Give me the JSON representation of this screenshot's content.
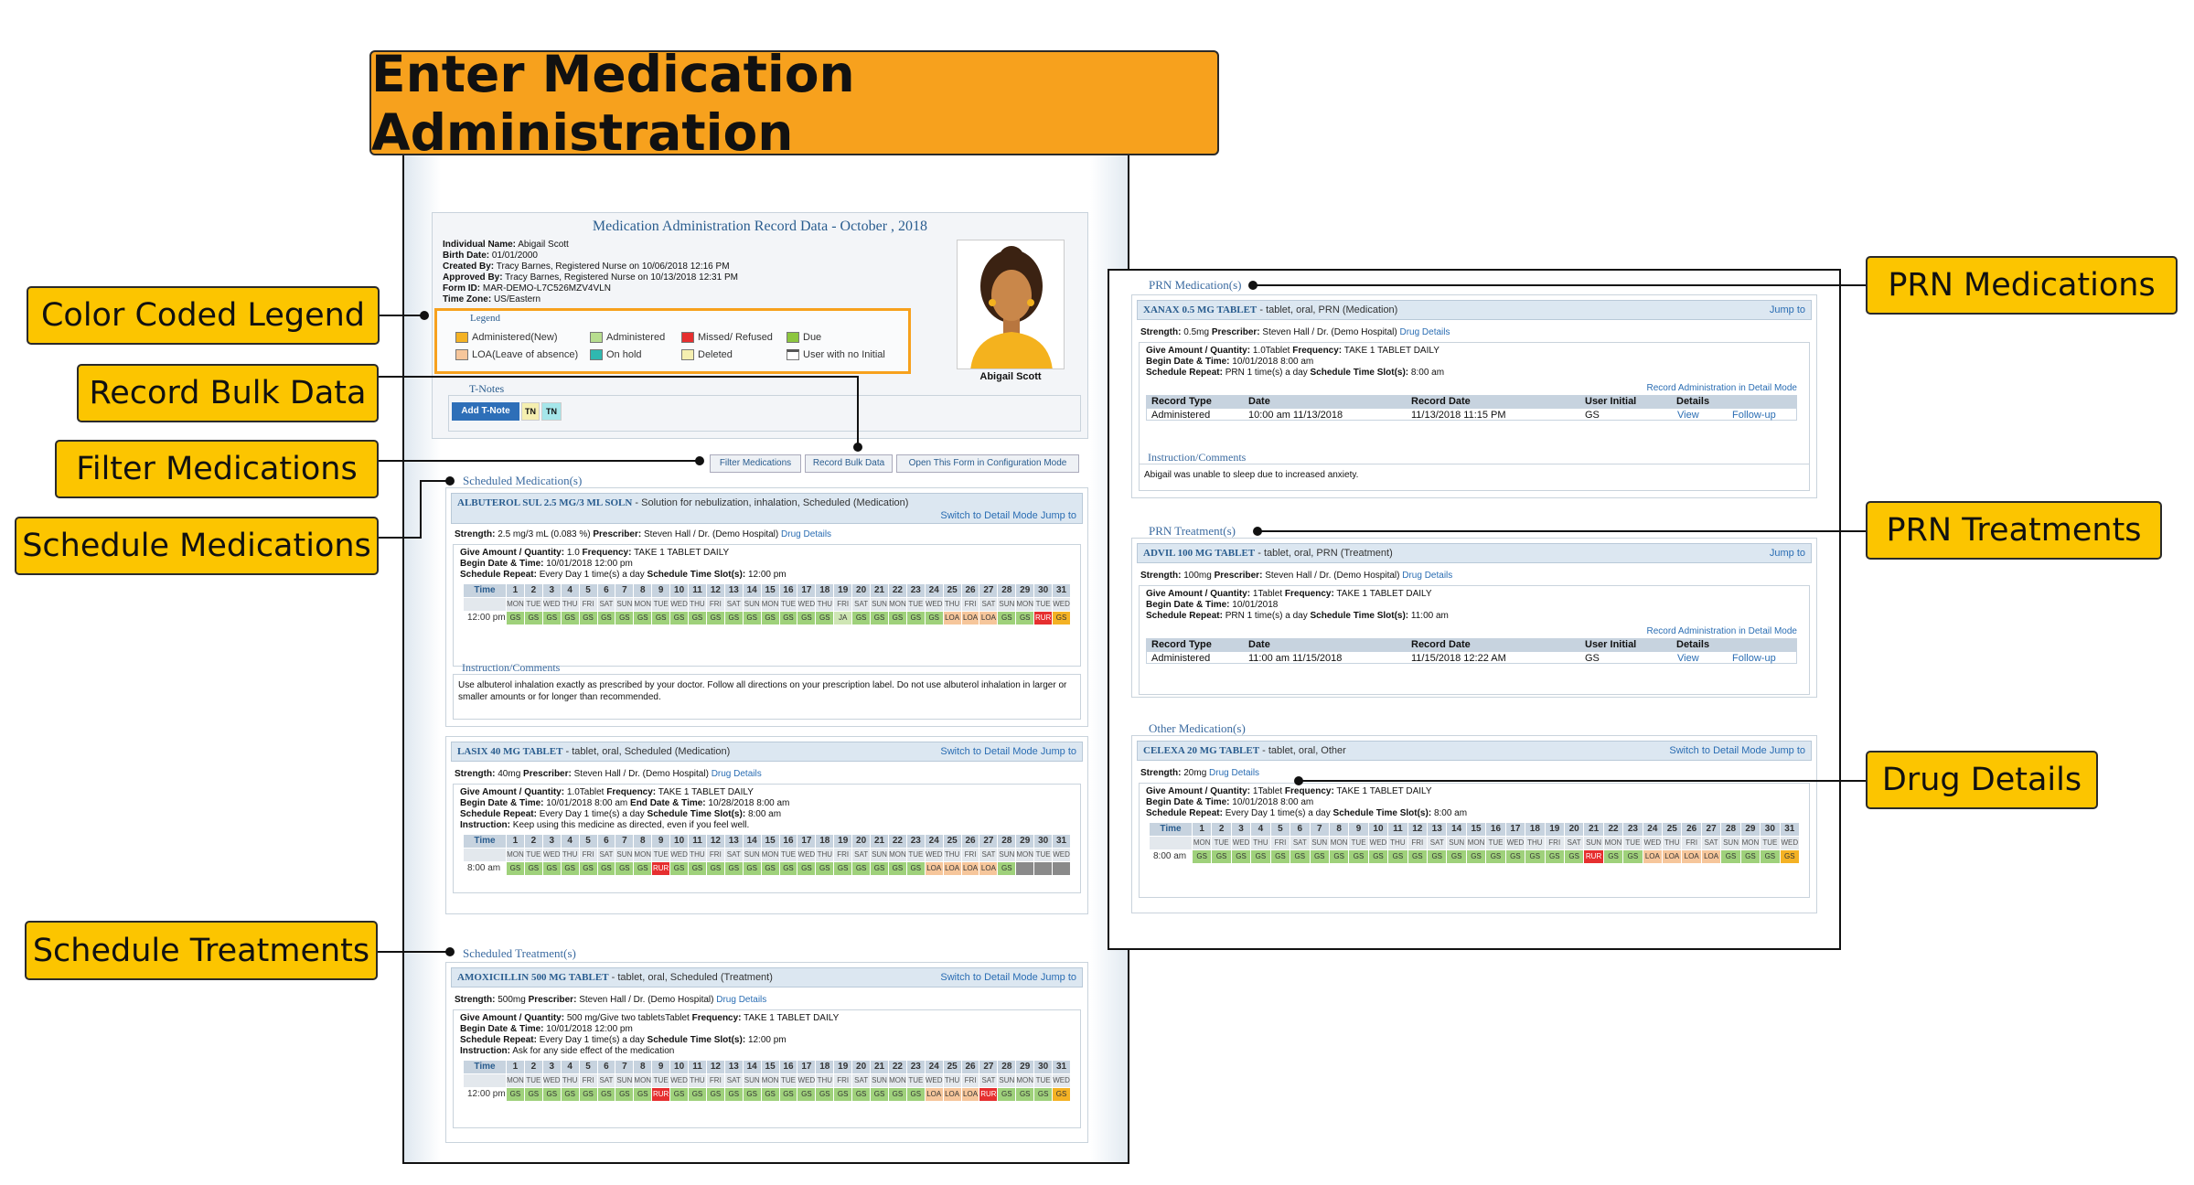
{
  "title": "Enter Medication Administration",
  "callouts": {
    "legend": "Color Coded Legend",
    "bulk": "Record Bulk Data",
    "filter": "Filter Medications",
    "sched_meds": "Schedule Medications",
    "sched_treat": "Schedule Treatments",
    "prn_meds": "PRN Medications",
    "prn_treat": "PRN Treatments",
    "drug_details": "Drug Details"
  },
  "record": {
    "heading": "Medication Administration Record Data - October , 2018",
    "fields": [
      {
        "label": "Individual Name:",
        "value": "Abigail Scott"
      },
      {
        "label": "Birth Date:",
        "value": "01/01/2000"
      },
      {
        "label": "Created By:",
        "value": "Tracy Barnes, Registered Nurse on 10/06/2018 12:16 PM"
      },
      {
        "label": "Approved By:",
        "value": "Tracy Barnes, Registered Nurse on 10/13/2018 12:31 PM"
      },
      {
        "label": "Form ID:",
        "value": "MAR-DEMO-L7C526MZV4VLN"
      },
      {
        "label": "Time Zone:",
        "value": "US/Eastern"
      }
    ],
    "avatar_name": "Abigail Scott"
  },
  "legend": {
    "title": "Legend",
    "items": [
      {
        "label": "Administered(New)",
        "color": "#f4b224"
      },
      {
        "label": "Administered",
        "color": "#b7dd8f"
      },
      {
        "label": "Missed/ Refused",
        "color": "#e62f2f"
      },
      {
        "label": "Due",
        "color": "#8cc63f"
      },
      {
        "label": "LOA(Leave of absence)",
        "color": "#f6c69b"
      },
      {
        "label": "On hold",
        "color": "#2fb8b0"
      },
      {
        "label": "Deleted",
        "color": "#f5efb0"
      },
      {
        "label": "User with no Initial",
        "color": "#ffffff"
      }
    ]
  },
  "tnotes": {
    "title": "T-Notes",
    "add": "Add T-Note",
    "tags": [
      "TN",
      "TN"
    ]
  },
  "toolbar": {
    "filter": "Filter Medications",
    "bulk": "Record Bulk Data",
    "config": "Open This Form in Configuration Mode"
  },
  "links": {
    "detail": "Switch to Detail Mode",
    "jump": "Jump to",
    "drug": "Drug Details",
    "record_detail": "Record Administration in Detail Mode",
    "view": "View",
    "follow": "Follow-up"
  },
  "labels": {
    "strength": "Strength:",
    "prescriber": "Prescriber:",
    "give": "Give Amount / Quantity:",
    "frequency": "Frequency:",
    "begin": "Begin Date & Time:",
    "end": "End Date & Time:",
    "repeat": "Schedule Repeat:",
    "slots": "Schedule Time Slot(s):",
    "instruction": "Instruction:",
    "time": "Time",
    "instr_section": "Instruction/Comments",
    "rt_type": "Record Type",
    "rt_date": "Date",
    "rt_rdate": "Record Date",
    "rt_user": "User Initial",
    "rt_details": "Details"
  },
  "days": [
    "1",
    "2",
    "3",
    "4",
    "5",
    "6",
    "7",
    "8",
    "9",
    "10",
    "11",
    "12",
    "13",
    "14",
    "15",
    "16",
    "17",
    "18",
    "19",
    "20",
    "21",
    "22",
    "23",
    "24",
    "25",
    "26",
    "27",
    "28",
    "29",
    "30",
    "31"
  ],
  "weekdays": [
    "MON",
    "TUE",
    "WED",
    "THU",
    "FRI",
    "SAT",
    "SUN",
    "MON",
    "TUE",
    "WED",
    "THU",
    "FRI",
    "SAT",
    "SUN",
    "MON",
    "TUE",
    "WED",
    "THU",
    "FRI",
    "SAT",
    "SUN",
    "MON",
    "TUE",
    "WED",
    "THU",
    "FRI",
    "SAT",
    "SUN",
    "MON",
    "TUE",
    "WED"
  ],
  "sections": {
    "scheduled_meds": "Scheduled Medication(s)",
    "scheduled_treat": "Scheduled Treatment(s)",
    "prn_meds": "PRN Medication(s)",
    "prn_treat": "PRN Treatment(s)",
    "other_meds": "Other Medication(s)"
  },
  "meds": {
    "albuterol": {
      "name": "ALBUTEROL SUL 2.5 MG/3 ML SOLN",
      "desc": "- Solution for nebulization, inhalation, Scheduled (Medication)",
      "strength": "2.5 mg/3 mL (0.083 %)",
      "prescriber": "Steven Hall / Dr. (Demo Hospital)",
      "give": "1.0",
      "frequency": "TAKE 1 TABLET DAILY",
      "begin": "10/01/2018 12:00 pm",
      "repeat": "Every Day 1 time(s) a day",
      "slots": "12:00 pm",
      "time": "12:00 pm",
      "cells": [
        "GS",
        "GS",
        "GS",
        "GS",
        "GS",
        "GS",
        "GS",
        "GS",
        "GS",
        "GS",
        "GS",
        "GS",
        "GS",
        "GS",
        "GS",
        "GS",
        "GS",
        "GS",
        "JA",
        "GS",
        "GS",
        "GS",
        "GS",
        "GS",
        "LOA",
        "LOA",
        "LOA",
        "GS",
        "GS",
        "RUR",
        "GS"
      ],
      "instruction_text": "Use albuterol inhalation exactly as prescribed by your doctor. Follow all directions on your prescription label. Do not use albuterol inhalation in larger or smaller amounts or for longer than recommended."
    },
    "lasix": {
      "name": "LASIX 40 MG TABLET",
      "desc": "- tablet, oral, Scheduled (Medication)",
      "strength": "40mg",
      "prescriber": "Steven Hall / Dr. (Demo Hospital)",
      "give": "1.0Tablet",
      "frequency": "TAKE 1 TABLET DAILY",
      "begin": "10/01/2018 8:00 am",
      "end": "10/28/2018 8:00 am",
      "repeat": "Every Day 1 time(s) a day",
      "slots": "8:00 am",
      "instruction": "Keep using this medicine as directed, even if you feel well.",
      "time": "8:00 am",
      "cells": [
        "GS",
        "GS",
        "GS",
        "GS",
        "GS",
        "GS",
        "GS",
        "GS",
        "RUR",
        "GS",
        "GS",
        "GS",
        "GS",
        "GS",
        "GS",
        "GS",
        "GS",
        "GS",
        "GS",
        "GS",
        "GS",
        "GS",
        "GS",
        "LOA",
        "LOA",
        "LOA",
        "LOA",
        "GS",
        "",
        "",
        ""
      ]
    },
    "amox": {
      "name": "AMOXICILLIN 500 MG TABLET",
      "desc": "- tablet, oral, Scheduled (Treatment)",
      "strength": "500mg",
      "prescriber": "Steven Hall / Dr. (Demo Hospital)",
      "give": "500 mg/Give two tabletsTablet",
      "frequency": "TAKE 1 TABLET DAILY",
      "begin": "10/01/2018 12:00 pm",
      "repeat": "Every Day 1 time(s) a day",
      "slots": "12:00 pm",
      "instruction": "Ask for any side effect of the medication",
      "time": "12:00 pm",
      "cells": [
        "GS",
        "GS",
        "GS",
        "GS",
        "GS",
        "GS",
        "GS",
        "GS",
        "RUR",
        "GS",
        "GS",
        "GS",
        "GS",
        "GS",
        "GS",
        "GS",
        "GS",
        "GS",
        "GS",
        "GS",
        "GS",
        "GS",
        "GS",
        "LOA",
        "LOA",
        "LOA",
        "RUR",
        "GS",
        "GS",
        "GS",
        "GS"
      ]
    },
    "xanax": {
      "name": "XANAX 0.5 MG TABLET",
      "desc": "- tablet, oral, PRN (Medication)",
      "strength": "0.5mg",
      "prescriber": "Steven Hall / Dr. (Demo Hospital)",
      "give": "1.0Tablet",
      "frequency": "TAKE 1 TABLET DAILY",
      "begin": "10/01/2018 8:00 am",
      "repeat": "PRN 1 time(s) a day",
      "slots": "8:00 am",
      "row": {
        "type": "Administered",
        "date": "10:00 am 11/13/2018",
        "rdate": "11/13/2018 11:15 PM",
        "user": "GS"
      },
      "instruction_text": "Abigail was unable to sleep due to increased anxiety."
    },
    "advil": {
      "name": "ADVIL 100 MG TABLET",
      "desc": "- tablet, oral, PRN (Treatment)",
      "strength": "100mg",
      "prescriber": "Steven Hall / Dr. (Demo Hospital)",
      "give": "1Tablet",
      "frequency": "TAKE 1 TABLET DAILY",
      "begin": "10/01/2018",
      "repeat": "PRN 1 time(s) a day",
      "slots": "11:00 am",
      "row": {
        "type": "Administered",
        "date": "11:00 am 11/15/2018",
        "rdate": "11/15/2018 12:22 AM",
        "user": "GS"
      }
    },
    "celexa": {
      "name": "CELEXA 20 MG TABLET",
      "desc": "- tablet, oral, Other",
      "strength": "20mg",
      "give": "1Tablet",
      "frequency": "TAKE 1 TABLET DAILY",
      "begin": "10/01/2018 8:00 am",
      "repeat": "Every Day 1 time(s) a day",
      "slots": "8:00 am",
      "time": "8:00 am",
      "cells": [
        "GS",
        "GS",
        "GS",
        "GS",
        "GS",
        "GS",
        "GS",
        "GS",
        "GS",
        "GS",
        "GS",
        "GS",
        "GS",
        "GS",
        "GS",
        "GS",
        "GS",
        "GS",
        "GS",
        "GS",
        "RUR",
        "GS",
        "GS",
        "LOA",
        "LOA",
        "LOA",
        "LOA",
        "GS",
        "GS",
        "GS",
        "GS"
      ]
    }
  }
}
